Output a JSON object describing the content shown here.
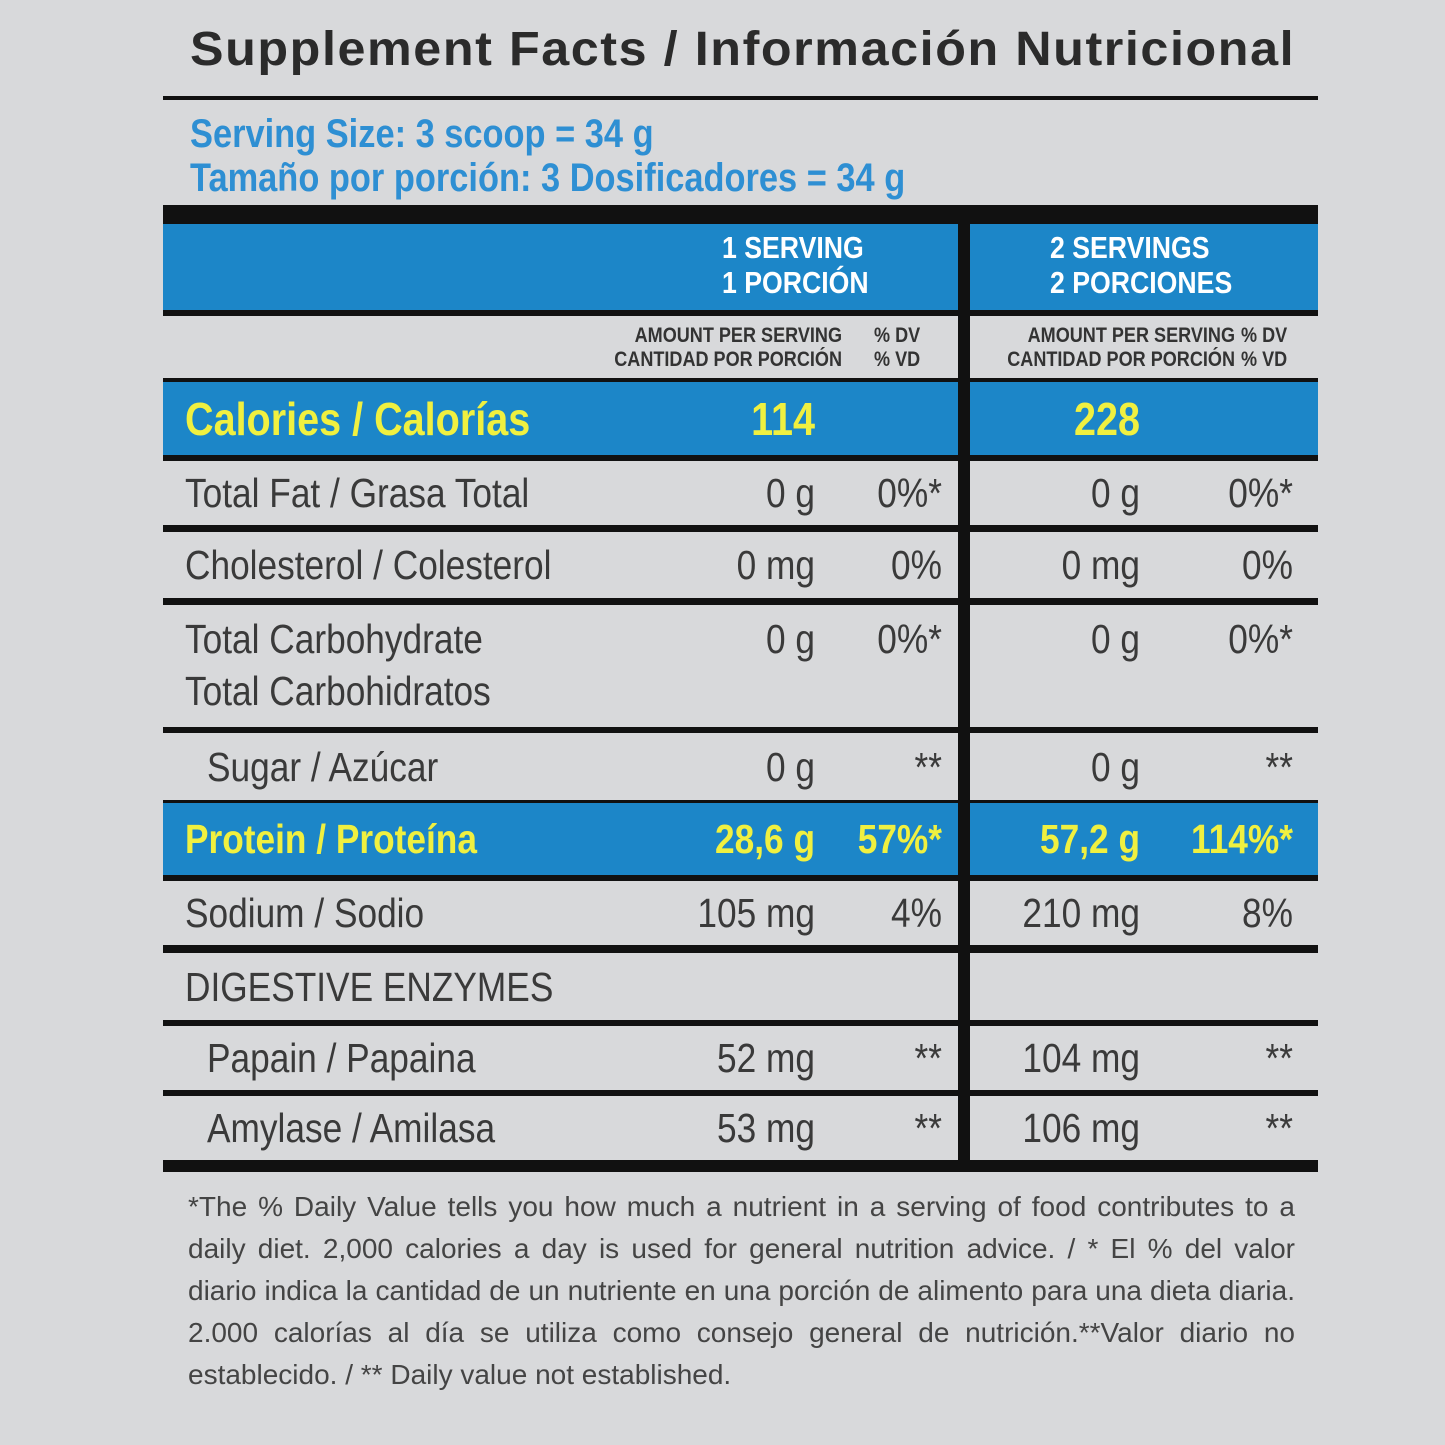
{
  "header": {
    "title": "Supplement Facts / Información Nutricional"
  },
  "serving": [
    "Serving Size: 3 scoop = 34 g",
    "Tamaño por porción:  3 Dosificadores = 34 g"
  ],
  "table": {
    "columns": [
      {
        "label": [
          "1 SERVING",
          "1 PORCIÓN"
        ],
        "amount_header": [
          "AMOUNT PER SERVING",
          "CANTIDAD POR PORCIÓN"
        ],
        "dv_header": [
          "% DV",
          "% VD"
        ]
      },
      {
        "label": [
          "2 SERVINGS",
          "2 PORCIONES"
        ],
        "amount_header": [
          "AMOUNT PER SERVING",
          "CANTIDAD POR PORCIÓN"
        ],
        "dv_header": [
          "% DV",
          "% VD"
        ]
      }
    ],
    "rows": [
      {
        "label": [
          "Calories / Calorías"
        ],
        "amounts": [
          "114",
          "228"
        ]
      },
      {
        "label": [
          "Total Fat / Grasa Total"
        ],
        "amounts": [
          "0 g",
          "0 g"
        ],
        "dv": [
          "0%*",
          "0%*"
        ]
      },
      {
        "label": [
          "Cholesterol / Colesterol"
        ],
        "amounts": [
          "0 mg",
          "0 mg"
        ],
        "dv": [
          "0%",
          "0%"
        ]
      },
      {
        "label": [
          "Total Carbohydrate",
          "Total Carbohidratos"
        ],
        "amounts": [
          "0  g",
          "0 g"
        ],
        "dv": [
          "0%*",
          "0%*"
        ]
      },
      {
        "label": [
          "Sugar / Azúcar"
        ],
        "amounts": [
          "0 g",
          "0 g"
        ],
        "dv": [
          "**",
          "**"
        ]
      },
      {
        "label": [
          "Protein / Proteína"
        ],
        "amounts": [
          "28,6 g",
          "57,2 g"
        ],
        "dv": [
          "57%*",
          "114%*"
        ]
      },
      {
        "label": [
          "Sodium / Sodio"
        ],
        "amounts": [
          "105 mg",
          "210 mg"
        ],
        "dv": [
          "4%",
          "8%"
        ]
      },
      {
        "label": [
          "DIGESTIVE ENZYMES"
        ]
      },
      {
        "label": [
          "Papain / Papaina"
        ],
        "amounts": [
          "52 mg",
          "104 mg"
        ],
        "dv": [
          "**",
          "**"
        ]
      },
      {
        "label": [
          "Amylase / Amilasa"
        ],
        "amounts": [
          "53 mg",
          "106 mg"
        ],
        "dv": [
          "**",
          "**"
        ]
      }
    ]
  },
  "footnote": "*The % Daily Value tells you how much a nutrient in a serving of food contributes to a daily diet. 2,000 calories a day is used for general nutrition advice. / * El % del valor diario indica la cantidad de un nutriente en una porción de alimento para una dieta diaria. 2.000 calorías al día se utiliza como consejo general de nutrición.**Valor diario no establecido. / ** Daily value not established."
}
